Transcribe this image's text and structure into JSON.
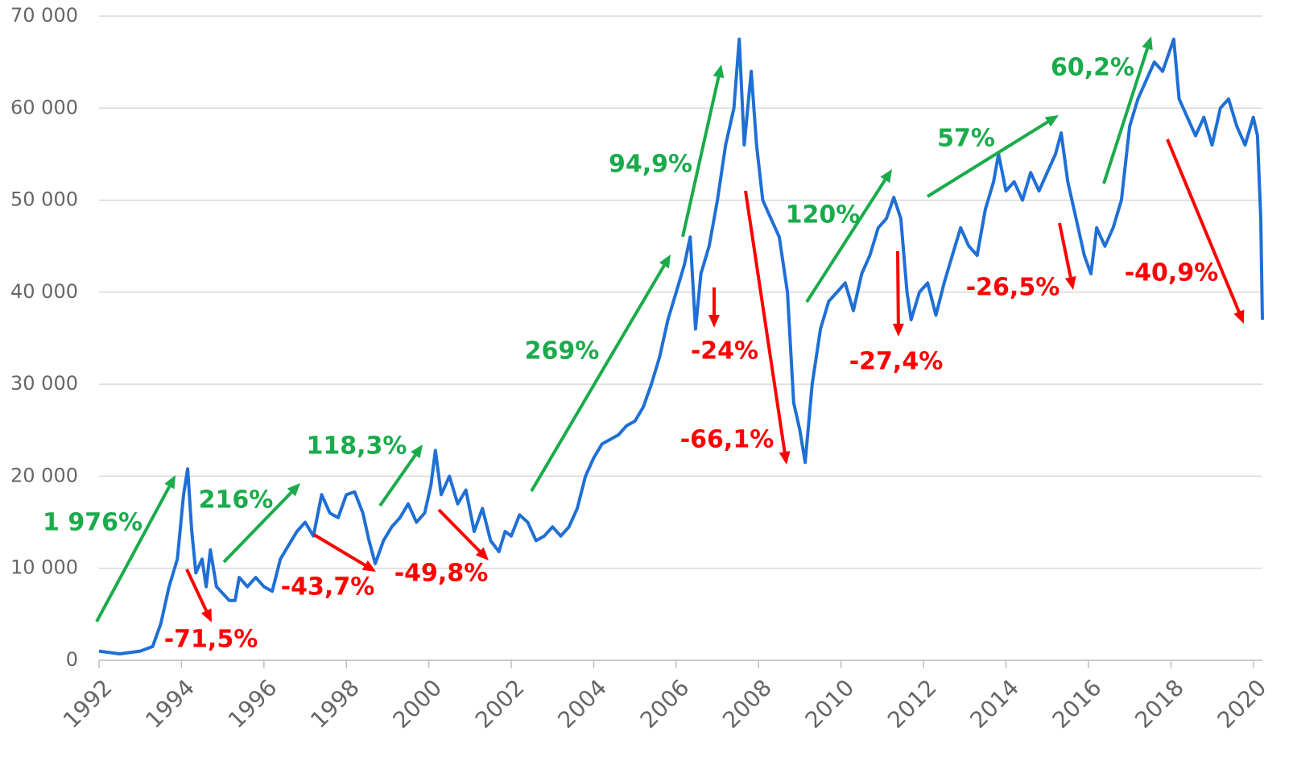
{
  "chart_data": {
    "type": "line",
    "x": [
      1992.0,
      1992.5,
      1993.0,
      1993.3,
      1993.5,
      1993.7,
      1993.9,
      1994.05,
      1994.15,
      1994.25,
      1994.35,
      1994.5,
      1994.6,
      1994.7,
      1994.85,
      1995.16,
      1995.3,
      1995.4,
      1995.6,
      1995.8,
      1996.0,
      1996.2,
      1996.4,
      1996.6,
      1996.8,
      1997.0,
      1997.2,
      1997.4,
      1997.6,
      1997.8,
      1998.0,
      1998.2,
      1998.4,
      1998.55,
      1998.7,
      1998.9,
      1999.1,
      1999.3,
      1999.5,
      1999.7,
      1999.9,
      2000.05,
      2000.16,
      2000.3,
      2000.5,
      2000.7,
      2000.9,
      2001.1,
      2001.3,
      2001.5,
      2001.7,
      2001.85,
      2002.0,
      2002.2,
      2002.4,
      2002.6,
      2002.8,
      2003.0,
      2003.2,
      2003.4,
      2003.6,
      2003.8,
      2004.0,
      2004.2,
      2004.4,
      2004.6,
      2004.8,
      2005.0,
      2005.2,
      2005.4,
      2005.6,
      2005.8,
      2006.0,
      2006.2,
      2006.34,
      2006.47,
      2006.6,
      2006.8,
      2007.0,
      2007.2,
      2007.4,
      2007.53,
      2007.65,
      2007.82,
      2007.95,
      2008.1,
      2008.3,
      2008.5,
      2008.7,
      2008.85,
      2009.0,
      2009.13,
      2009.3,
      2009.5,
      2009.7,
      2009.9,
      2010.1,
      2010.3,
      2010.5,
      2010.7,
      2010.9,
      2011.1,
      2011.28,
      2011.45,
      2011.6,
      2011.7,
      2011.9,
      2012.1,
      2012.3,
      2012.5,
      2012.7,
      2012.9,
      2013.1,
      2013.3,
      2013.5,
      2013.7,
      2013.82,
      2014.0,
      2014.2,
      2014.4,
      2014.6,
      2014.8,
      2015.0,
      2015.2,
      2015.34,
      2015.5,
      2015.7,
      2015.9,
      2016.06,
      2016.2,
      2016.4,
      2016.6,
      2016.8,
      2017.0,
      2017.2,
      2017.4,
      2017.6,
      2017.8,
      2018.07,
      2018.2,
      2018.4,
      2018.6,
      2018.8,
      2019.0,
      2019.2,
      2019.4,
      2019.6,
      2019.8,
      2020.0,
      2020.1,
      2020.18,
      2020.22
    ],
    "series": [
      {
        "color": "#1f6fd6",
        "values": [
          1000,
          700,
          1000,
          1500,
          4000,
          8000,
          11000,
          18000,
          20800,
          14000,
          9500,
          11000,
          8000,
          12000,
          8000,
          6500,
          6500,
          9000,
          8000,
          9000,
          8000,
          7500,
          11000,
          12500,
          14000,
          15000,
          13500,
          18000,
          16000,
          15500,
          18000,
          18300,
          16000,
          13000,
          10500,
          13000,
          14500,
          15500,
          17000,
          15000,
          16000,
          19000,
          22800,
          18000,
          20000,
          17000,
          18500,
          14000,
          16500,
          13000,
          11800,
          14000,
          13500,
          15800,
          15000,
          13000,
          13500,
          14500,
          13500,
          14500,
          16500,
          20000,
          22000,
          23500,
          24000,
          24500,
          25500,
          26000,
          27500,
          30000,
          33000,
          37000,
          40000,
          43000,
          46000,
          36000,
          42000,
          45000,
          50000,
          56000,
          60000,
          67500,
          56000,
          64000,
          56000,
          50000,
          48000,
          46000,
          40000,
          28000,
          25000,
          21500,
          30000,
          36000,
          39000,
          40000,
          41000,
          38000,
          42000,
          44000,
          47000,
          48000,
          50300,
          48000,
          40000,
          37000,
          40000,
          41000,
          37500,
          41000,
          44000,
          47000,
          45000,
          44000,
          49000,
          52000,
          55000,
          51000,
          52000,
          50000,
          53000,
          51000,
          53000,
          55000,
          57300,
          52000,
          48000,
          44000,
          42000,
          47000,
          45000,
          47000,
          50000,
          58000,
          61000,
          63000,
          65000,
          64000,
          67500,
          61000,
          59000,
          57000,
          59000,
          56000,
          60000,
          61000,
          58000,
          56000,
          59000,
          57000,
          48000,
          37000
        ]
      }
    ],
    "xlim": [
      1992,
      2020.22
    ],
    "xticks": [
      1992,
      1994,
      1996,
      1998,
      2000,
      2002,
      2004,
      2006,
      2008,
      2010,
      2012,
      2014,
      2016,
      2018,
      2020
    ],
    "ylim": [
      0,
      70000
    ],
    "yticks": [
      0,
      {
        "value": 10000,
        "label": "10 000"
      },
      {
        "value": 20000,
        "label": "20 000"
      },
      {
        "value": 30000,
        "label": "30 000"
      },
      {
        "value": 40000,
        "label": "40 000"
      },
      {
        "value": 50000,
        "label": "50 000"
      },
      {
        "value": 60000,
        "label": "60 000"
      },
      {
        "value": 70000,
        "label": "70 000"
      }
    ],
    "grid": true,
    "annotations": [
      {
        "text": "1 976%",
        "color": "#1aab4b"
      },
      {
        "text": "216%",
        "color": "#1aab4b"
      },
      {
        "text": "118,3%",
        "color": "#1aab4b"
      },
      {
        "text": "269%",
        "color": "#1aab4b"
      },
      {
        "text": "94,9%",
        "color": "#1aab4b"
      },
      {
        "text": "120%",
        "color": "#1aab4b"
      },
      {
        "text": "57%",
        "color": "#1aab4b"
      },
      {
        "text": "60,2%",
        "color": "#1aab4b"
      },
      {
        "text": "-71,5%",
        "color": "#ff0000"
      },
      {
        "text": "-43,7%",
        "color": "#ff0000"
      },
      {
        "text": "-49,8%",
        "color": "#ff0000"
      },
      {
        "text": "-24%",
        "color": "#ff0000"
      },
      {
        "text": "-66,1%",
        "color": "#ff0000"
      },
      {
        "text": "-27,4%",
        "color": "#ff0000"
      },
      {
        "text": "-26,5%",
        "color": "#ff0000"
      },
      {
        "text": "-40,9%",
        "color": "#ff0000"
      }
    ]
  }
}
